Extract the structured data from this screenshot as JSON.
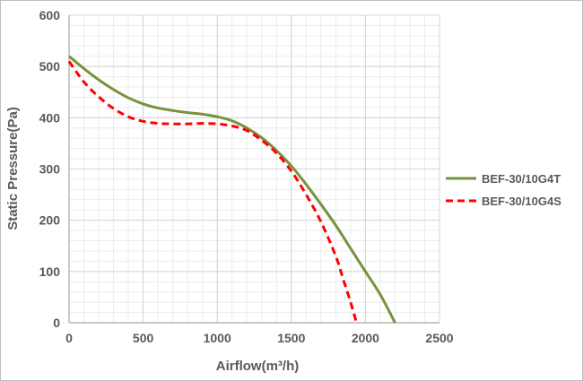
{
  "chart_data": {
    "type": "line",
    "title": "",
    "xlabel": "Airflow(m³/h)",
    "ylabel": "Static Pressure(Pa)",
    "xlim": [
      0,
      2500
    ],
    "ylim": [
      0,
      600
    ],
    "x_ticks": [
      0,
      500,
      1000,
      1500,
      2000,
      2500
    ],
    "y_ticks": [
      0,
      100,
      200,
      300,
      400,
      500,
      600
    ],
    "x_tick_labels": [
      "0",
      "500",
      "1000",
      "1500",
      "2000",
      "2500"
    ],
    "y_tick_labels": [
      "0",
      "100",
      "200",
      "300",
      "400",
      "500",
      "600"
    ],
    "grid": true,
    "minor_grid": true,
    "legend_position": "right",
    "series": [
      {
        "name": "BEF-30/10G4T",
        "color": "#77933c",
        "dash": "solid",
        "x": [
          0,
          100,
          200,
          300,
          400,
          500,
          600,
          700,
          800,
          900,
          1000,
          1100,
          1200,
          1300,
          1400,
          1500,
          1600,
          1700,
          1800,
          1900,
          2000,
          2100,
          2200
        ],
        "y": [
          520,
          496,
          474,
          455,
          439,
          427,
          419,
          414,
          410,
          407,
          402,
          394,
          380,
          361,
          336,
          306,
          270,
          231,
          190,
          145,
          100,
          55,
          0
        ]
      },
      {
        "name": "BEF-30/10G4S",
        "color": "#ff0000",
        "dash": "dashed",
        "x": [
          0,
          100,
          200,
          300,
          400,
          500,
          600,
          700,
          800,
          900,
          1000,
          1100,
          1200,
          1300,
          1400,
          1500,
          1600,
          1700,
          1800,
          1850,
          1900,
          1940
        ],
        "y": [
          510,
          470,
          441,
          418,
          402,
          393,
          389,
          388,
          388,
          389,
          388,
          384,
          375,
          356,
          331,
          296,
          250,
          197,
          130,
          85,
          40,
          0
        ]
      }
    ]
  }
}
